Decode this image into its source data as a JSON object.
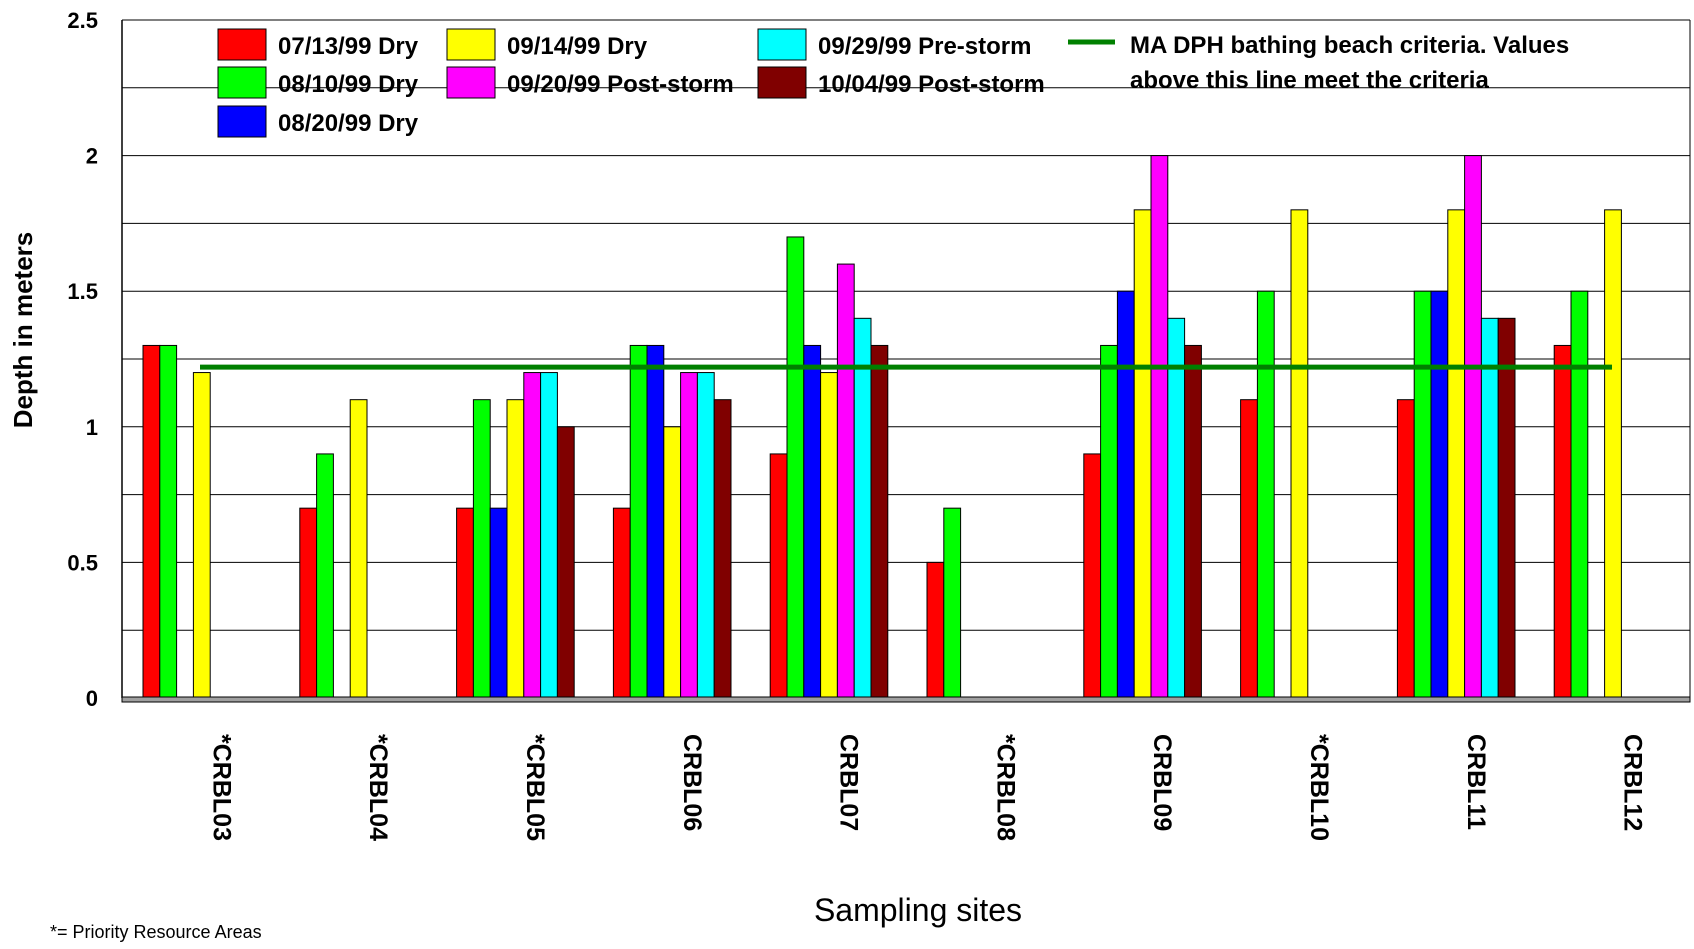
{
  "chart_data": {
    "type": "bar",
    "ylabel": "Depth in meters",
    "xlabel": "Sampling sites",
    "ylim": [
      0,
      2.5
    ],
    "yticks": [
      "0",
      "0.5",
      "1",
      "1.5",
      "2",
      "2.5"
    ],
    "grid": true,
    "categories": [
      "*CRBL03",
      "*CRBL04",
      "*CRBL05",
      "CRBL06",
      "CRBL07",
      "*CRBL08",
      "CRBL09",
      "*CRBL10",
      "CRBL11",
      "CRBL12"
    ],
    "series": [
      {
        "name": "07/13/99 Dry",
        "color": "#ff0000",
        "values": [
          1.3,
          0.7,
          0.7,
          0.7,
          0.9,
          0.5,
          0.9,
          1.1,
          1.1,
          1.3
        ]
      },
      {
        "name": "08/10/99 Dry",
        "color": "#00ff00",
        "values": [
          1.3,
          0.9,
          1.1,
          1.3,
          1.7,
          0.7,
          1.3,
          1.5,
          1.5,
          1.5
        ]
      },
      {
        "name": "08/20/99 Dry",
        "color": "#0000ff",
        "values": [
          null,
          null,
          0.7,
          1.3,
          1.3,
          null,
          1.5,
          null,
          1.5,
          null
        ]
      },
      {
        "name": "09/14/99 Dry",
        "color": "#ffff00",
        "values": [
          1.2,
          1.1,
          1.1,
          1.0,
          1.2,
          null,
          1.8,
          1.8,
          1.8,
          1.8
        ]
      },
      {
        "name": "09/20/99 Post-storm",
        "color": "#ff00ff",
        "values": [
          null,
          null,
          1.2,
          1.2,
          1.6,
          null,
          2.0,
          null,
          2.0,
          null
        ]
      },
      {
        "name": "09/29/99 Pre-storm",
        "color": "#00ffff",
        "values": [
          null,
          null,
          1.2,
          1.2,
          1.4,
          null,
          1.4,
          null,
          1.4,
          null
        ]
      },
      {
        "name": "10/04/99 Post-storm",
        "color": "#800000",
        "values": [
          null,
          null,
          1.0,
          1.1,
          1.3,
          null,
          1.3,
          null,
          1.4,
          null
        ]
      }
    ],
    "reference_line": {
      "value": 1.22,
      "color": "#008000",
      "label_lines": [
        "MA DPH bathing beach criteria.  Values",
        "above this line meet the criteria"
      ]
    },
    "legend_placement": "top"
  },
  "footnote": "*= Priority Resource Areas"
}
